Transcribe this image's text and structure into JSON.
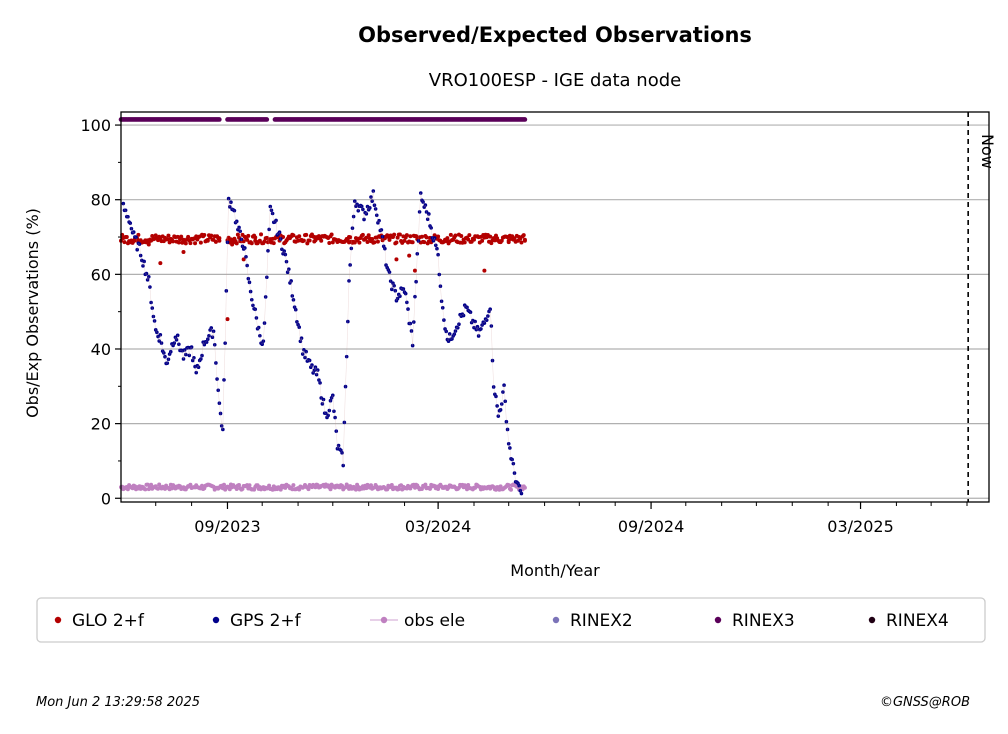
{
  "chart_data": {
    "type": "scatter",
    "title": "Observed/Expected Observations",
    "subtitle": "VRO100ESP - IGE data node",
    "xlabel": "Month/Year",
    "ylabel": "Obs/Exp Observations (%)",
    "x_tick_labels": [
      "09/2023",
      "03/2024",
      "09/2024",
      "03/2025"
    ],
    "x_tick_dates": [
      "2023-09-01",
      "2024-03-01",
      "2024-09-01",
      "2025-03-01"
    ],
    "xlim": [
      "2023-06-01",
      "2025-06-20"
    ],
    "ylim": [
      -1,
      103.5
    ],
    "y_ticks": [
      0,
      20,
      40,
      60,
      80,
      100
    ],
    "grid": "horizontal",
    "now_marker": {
      "date": "2025-06-02",
      "label": "Now"
    },
    "legend_position": "bottom",
    "series": [
      {
        "name": "GLO 2+f",
        "color": "#b30000",
        "marker": "dot",
        "approx_level": 69.5,
        "points": [
          [
            "2023-06-05",
            70
          ],
          [
            "2023-06-15",
            69
          ],
          [
            "2023-06-25",
            68
          ],
          [
            "2023-07-05",
            63
          ],
          [
            "2023-07-15",
            69
          ],
          [
            "2023-07-25",
            66
          ],
          [
            "2023-08-05",
            70
          ],
          [
            "2023-08-15",
            69
          ],
          [
            "2023-08-25",
            69
          ],
          [
            "2023-09-01",
            48
          ],
          [
            "2023-09-05",
            68
          ],
          [
            "2023-09-15",
            64
          ],
          [
            "2023-09-25",
            69
          ],
          [
            "2023-10-15",
            70
          ],
          [
            "2023-11-15",
            70
          ],
          [
            "2023-12-15",
            70
          ],
          [
            "2024-01-15",
            70
          ],
          [
            "2024-01-25",
            64
          ],
          [
            "2024-02-05",
            65
          ],
          [
            "2024-02-10",
            61
          ],
          [
            "2024-03-15",
            70
          ],
          [
            "2024-04-10",
            61
          ],
          [
            "2024-05-01",
            69
          ],
          [
            "2024-05-15",
            69
          ]
        ]
      },
      {
        "name": "GPS 2+f",
        "color": "#00008b",
        "marker": "dot",
        "points": [
          [
            "2023-06-03",
            78
          ],
          [
            "2023-06-08",
            75
          ],
          [
            "2023-06-12",
            70
          ],
          [
            "2023-06-18",
            66
          ],
          [
            "2023-06-25",
            58
          ],
          [
            "2023-07-01",
            45
          ],
          [
            "2023-07-05",
            43
          ],
          [
            "2023-07-10",
            36
          ],
          [
            "2023-07-18",
            44
          ],
          [
            "2023-07-25",
            38
          ],
          [
            "2023-08-01",
            40
          ],
          [
            "2023-08-05",
            33
          ],
          [
            "2023-08-12",
            42
          ],
          [
            "2023-08-20",
            45
          ],
          [
            "2023-08-25",
            25
          ],
          [
            "2023-08-28",
            18
          ],
          [
            "2023-09-02",
            80
          ],
          [
            "2023-09-06",
            78
          ],
          [
            "2023-09-10",
            72
          ],
          [
            "2023-09-15",
            68
          ],
          [
            "2023-09-20",
            57
          ],
          [
            "2023-09-28",
            45
          ],
          [
            "2023-10-02",
            41
          ],
          [
            "2023-10-08",
            77
          ],
          [
            "2023-10-12",
            74
          ],
          [
            "2023-10-20",
            66
          ],
          [
            "2023-10-28",
            54
          ],
          [
            "2023-11-05",
            40
          ],
          [
            "2023-11-12",
            35
          ],
          [
            "2023-11-18",
            33
          ],
          [
            "2023-11-25",
            22
          ],
          [
            "2023-12-01",
            27
          ],
          [
            "2023-12-05",
            14
          ],
          [
            "2023-12-10",
            10
          ],
          [
            "2023-12-15",
            58
          ],
          [
            "2023-12-20",
            80
          ],
          [
            "2023-12-28",
            76
          ],
          [
            "2024-01-05",
            81
          ],
          [
            "2024-01-12",
            71
          ],
          [
            "2024-01-18",
            60
          ],
          [
            "2024-01-25",
            54
          ],
          [
            "2024-02-01",
            56
          ],
          [
            "2024-02-08",
            42
          ],
          [
            "2024-02-15",
            81
          ],
          [
            "2024-02-22",
            75
          ],
          [
            "2024-03-01",
            65
          ],
          [
            "2024-03-05",
            50
          ],
          [
            "2024-03-10",
            42
          ],
          [
            "2024-03-18",
            47
          ],
          [
            "2024-03-25",
            51
          ],
          [
            "2024-04-05",
            44
          ],
          [
            "2024-04-10",
            47
          ],
          [
            "2024-04-15",
            52
          ],
          [
            "2024-04-18",
            31
          ],
          [
            "2024-04-22",
            22
          ],
          [
            "2024-04-27",
            29
          ],
          [
            "2024-05-01",
            15
          ],
          [
            "2024-05-05",
            8
          ],
          [
            "2024-05-10",
            2
          ],
          [
            "2024-05-13",
            1
          ]
        ]
      },
      {
        "name": "obs ele",
        "color": "#bf80c0",
        "marker": "dot-line",
        "approx_level": 3,
        "range": [
          "2023-06-01",
          "2024-05-15"
        ]
      },
      {
        "name": "RINEX2",
        "color": "#7b73b8",
        "marker": "dot"
      },
      {
        "name": "RINEX3",
        "color": "#5a0059",
        "marker": "dot",
        "level": 101.5,
        "segments": [
          [
            "2023-06-01",
            "2023-08-25"
          ],
          [
            "2023-09-01",
            "2023-10-05"
          ],
          [
            "2023-10-12",
            "2024-05-15"
          ]
        ]
      },
      {
        "name": "RINEX4",
        "color": "#200014",
        "marker": "dot"
      }
    ]
  },
  "footer": {
    "timestamp": "Mon Jun  2 13:29:58 2025",
    "credit": "©GNSS@ROB"
  }
}
